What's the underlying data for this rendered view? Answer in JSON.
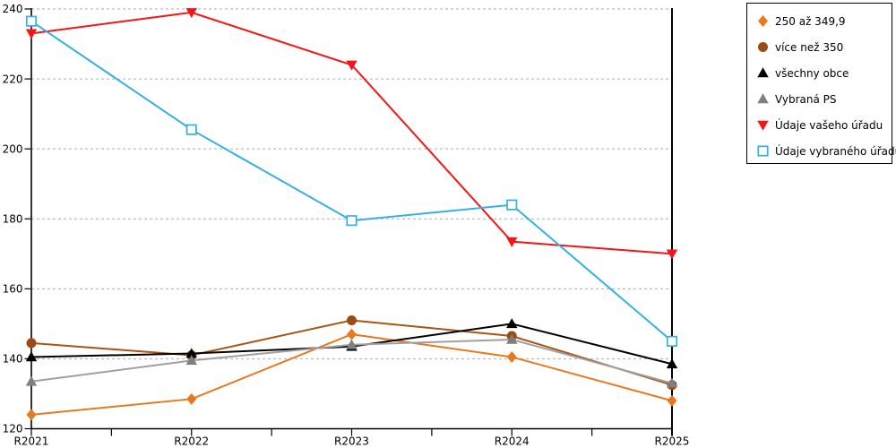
{
  "chart_data": {
    "type": "line",
    "title": "",
    "xlabel": "",
    "ylabel": "",
    "categories": [
      "R2021",
      "R2022",
      "R2023",
      "R2024",
      "R2025"
    ],
    "series": [
      {
        "name": "250 až 349,9",
        "marker": "diamond",
        "color": "#E8791E",
        "values": [
          124,
          128.5,
          147,
          140.5,
          128
        ]
      },
      {
        "name": "více než 350",
        "marker": "circle",
        "color": "#9C4A14",
        "line_color": "#A85415",
        "values": [
          144.5,
          141,
          151,
          146.5,
          132.5
        ]
      },
      {
        "name": "všechny obce",
        "marker": "triangle-up",
        "color": "#000000",
        "values": [
          140.5,
          141.5,
          143.5,
          150,
          138.5
        ]
      },
      {
        "name": "Vybraná PS",
        "marker": "triangle-up",
        "color": "#7F7F7F",
        "line_color": "#A0A0A0",
        "values": [
          133.5,
          139.5,
          144,
          145.5,
          133
        ]
      },
      {
        "name": "Údaje vašeho úřadu",
        "marker": "triangle-down",
        "color": "#F81414",
        "values": [
          233,
          239,
          224,
          173.5,
          170
        ]
      },
      {
        "name": "Údaje vybraného úřadu",
        "marker": "square-open",
        "color": "#35B0E2",
        "values": [
          236.5,
          205.5,
          179.5,
          184,
          145
        ]
      }
    ],
    "ylim": [
      120,
      240
    ],
    "ytick_step": 20,
    "minor_xticks_per_interval": 2,
    "grid": "dashed-horizontal",
    "legend_position": "top-right",
    "right_boundary_line": true
  },
  "colors": {
    "grid": "#ADADAD",
    "axis": "#000000",
    "background": "#FFFFFF",
    "legend_border": "#000000"
  }
}
